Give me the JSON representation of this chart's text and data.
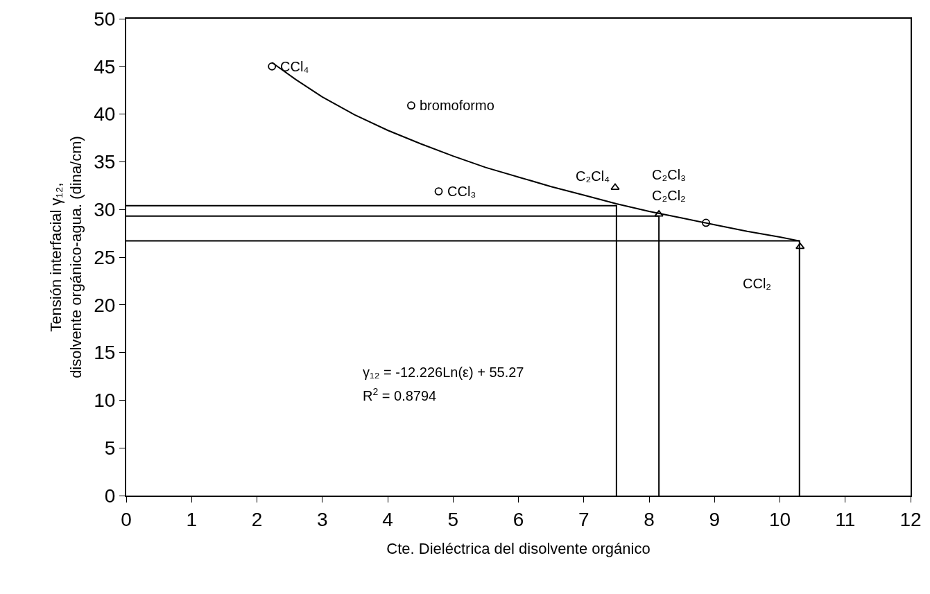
{
  "chart_data": {
    "type": "scatter",
    "xlabel": "Cte. Dieléctrica del disolvente orgánico",
    "ylabel": "Tensión interfacial γ₁₂, disolvente orgánico-agua. (dina/cm)",
    "xlim": [
      0,
      12
    ],
    "xticks": [
      0,
      1,
      2,
      3,
      4,
      5,
      6,
      7,
      8,
      9,
      10,
      11,
      12
    ],
    "ylim": [
      0,
      50
    ],
    "yticks": [
      0,
      5,
      10,
      15,
      20,
      25,
      30,
      35,
      40,
      45,
      50
    ],
    "series": [
      {
        "type": "line",
        "color": "#000000",
        "marker": "none",
        "line_style": "solid",
        "x": [
          2.23,
          2.6,
          3.0,
          3.5,
          4.0,
          4.5,
          5.0,
          5.5,
          6.0,
          6.5,
          7.0,
          7.5,
          8.0,
          8.5,
          9.0,
          9.5,
          10.0,
          10.3
        ],
        "values": [
          45.4,
          43.6,
          41.8,
          39.9,
          38.3,
          36.9,
          35.6,
          34.4,
          33.4,
          32.4,
          31.5,
          30.6,
          29.8,
          29.1,
          28.4,
          27.7,
          27.1,
          26.7
        ]
      },
      {
        "type": "line",
        "color": "#000000",
        "marker": "none",
        "line_style": "solid",
        "x": [
          0,
          7.5,
          7.5
        ],
        "values": [
          30.4,
          30.4,
          0
        ]
      },
      {
        "type": "line",
        "color": "#000000",
        "marker": "none",
        "line_style": "solid",
        "x": [
          0,
          8.15,
          8.15
        ],
        "values": [
          29.3,
          29.3,
          0
        ]
      },
      {
        "type": "line",
        "color": "#000000",
        "marker": "none",
        "line_style": "solid",
        "x": [
          0,
          10.3,
          10.3
        ],
        "values": [
          26.7,
          26.7,
          0
        ]
      },
      {
        "color": "#000000",
        "marker": "circle",
        "x": [
          2.23,
          4.36,
          4.78,
          8.87
        ],
        "values": [
          45.0,
          40.9,
          31.9,
          28.6
        ]
      },
      {
        "color": "#000000",
        "marker": "triangle",
        "x": [
          7.48,
          8.15,
          10.31
        ],
        "values": [
          32.3,
          29.5,
          26.1
        ]
      }
    ],
    "annotations": [
      {
        "text": "CCl₄",
        "x": 2.23,
        "y": 45.0
      },
      {
        "text": "bromoformo",
        "x": 4.36,
        "y": 40.9
      },
      {
        "text": "CCl₃",
        "x": 4.78,
        "y": 31.9
      },
      {
        "text": "C₂Cl₄",
        "x": 7.48,
        "y": 32.3
      },
      {
        "text": "C₂Cl₃",
        "x": 8.15,
        "y": 29.5
      },
      {
        "text": "C₂Cl₂",
        "x": 8.15,
        "y": 29.5
      },
      {
        "text": "CCl₂",
        "x": 10.31,
        "y": 26.1
      },
      "γ₁₂ = -12.226Ln(ε) + 55.27",
      "R$^{2}$ = 0.8794"
    ]
  }
}
